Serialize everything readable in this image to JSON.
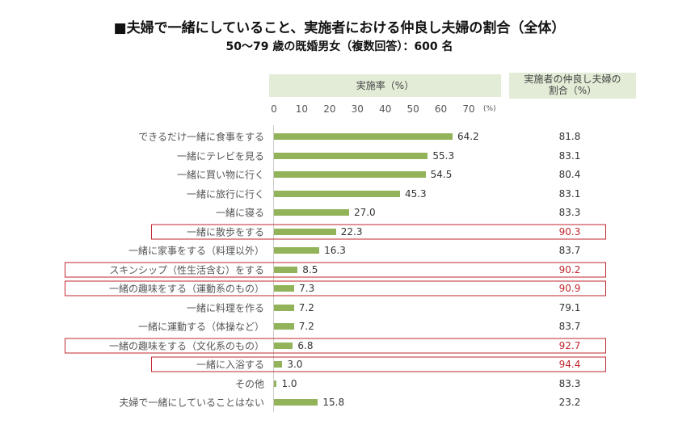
{
  "chart_data": {
    "type": "bar",
    "title": "■夫婦で一緒にしていること、実施者における仲良し夫婦の割合（全体）",
    "subtitle": "50～79 歳の既婚男女（複数回答）：600 名",
    "xlabel": "実施率（%）",
    "xunit": "(%)",
    "xlim": [
      0,
      70
    ],
    "xticks": [
      "0",
      "10",
      "20",
      "30",
      "40",
      "50",
      "60",
      "70"
    ],
    "column2_header": "実施者の仲良し夫婦の割合（%）",
    "column2_header_lines": [
      "実施者の仲良し夫婦の",
      "割合（%）"
    ],
    "bar_color": "#93b35a",
    "highlight_color": "#c0272d",
    "categories": [
      "できるだけ一緒に食事をする",
      "一緒にテレビを見る",
      "一緒に買い物に行く",
      "一緒に旅行に行く",
      "一緒に寝る",
      "一緒に散歩をする",
      "一緒に家事をする（料理以外）",
      "スキンシップ（性生活含む）をする",
      "一緒の趣味をする（運動系のもの）",
      "一緒に料理を作る",
      "一緒に運動する（体操など）",
      "一緒の趣味をする（文化系のもの）",
      "一緒に入浴する",
      "その他",
      "夫婦で一緒にしていることはない"
    ],
    "values": [
      64.2,
      55.3,
      54.5,
      45.3,
      27.0,
      22.3,
      16.3,
      8.5,
      7.3,
      7.2,
      7.2,
      6.8,
      3.0,
      1.0,
      15.8
    ],
    "value_labels": [
      "64.2",
      "55.3",
      "54.5",
      "45.3",
      "27.0",
      "22.3",
      "16.3",
      "8.5",
      "7.3",
      "7.2",
      "7.2",
      "6.8",
      "3.0",
      "1.0",
      "15.8"
    ],
    "ratios": [
      "81.8",
      "83.1",
      "80.4",
      "83.1",
      "83.3",
      "90.3",
      "83.7",
      "90.2",
      "90.9",
      "79.1",
      "83.7",
      "92.7",
      "94.4",
      "83.3",
      "23.2"
    ],
    "highlighted": [
      false,
      false,
      false,
      false,
      false,
      true,
      false,
      true,
      true,
      false,
      false,
      true,
      true,
      false,
      false
    ]
  }
}
